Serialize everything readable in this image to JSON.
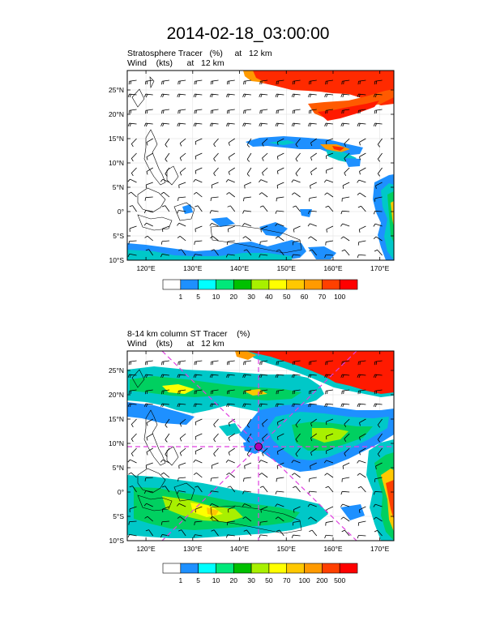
{
  "title": "2014-02-18_03:00:00",
  "panels": [
    {
      "title_line1": "Stratosphere Tracer   (%)     at   12 km",
      "title_line2": "Wind    (kts)      at   12 km",
      "lat_labels": [
        "25°N",
        "20°N",
        "15°N",
        "10°N",
        "5°N",
        "0°",
        "5°S",
        "10°S"
      ],
      "lon_labels": [
        "120°E",
        "130°E",
        "140°E",
        "150°E",
        "160°E",
        "170°E"
      ],
      "colorbar_labels": [
        "1",
        "5",
        "10",
        "20",
        "30",
        "40",
        "50",
        "60",
        "70",
        "100"
      ],
      "colorbar_colors": [
        "#ffffff",
        "#1e90ff",
        "#00ffff",
        "#00e87a",
        "#00c000",
        "#a8f000",
        "#ffff00",
        "#ffc800",
        "#ff9a00",
        "#ff4000",
        "#ff0000"
      ]
    },
    {
      "title_line1": "8-14 km column ST Tracer    (%)",
      "title_line2": "Wind    (kts)      at   12 km",
      "lat_labels": [
        "25°N",
        "20°N",
        "15°N",
        "10°N",
        "5°N",
        "0°",
        "5°S",
        "10°S"
      ],
      "lon_labels": [
        "120°E",
        "130°E",
        "140°E",
        "150°E",
        "160°E",
        "170°E"
      ],
      "colorbar_labels": [
        "1",
        "5",
        "10",
        "20",
        "30",
        "50",
        "70",
        "100",
        "200",
        "500"
      ],
      "colorbar_colors": [
        "#ffffff",
        "#1e90ff",
        "#00ffff",
        "#00e87a",
        "#00c000",
        "#a8f000",
        "#ffff00",
        "#ffc800",
        "#ff9a00",
        "#ff4000",
        "#ff0000"
      ]
    }
  ],
  "map_extent": {
    "lon": [
      116,
      173
    ],
    "lat": [
      -10,
      29
    ]
  },
  "storm_marker": {
    "lon": 145,
    "lat": 10,
    "color": "#e040e0"
  }
}
